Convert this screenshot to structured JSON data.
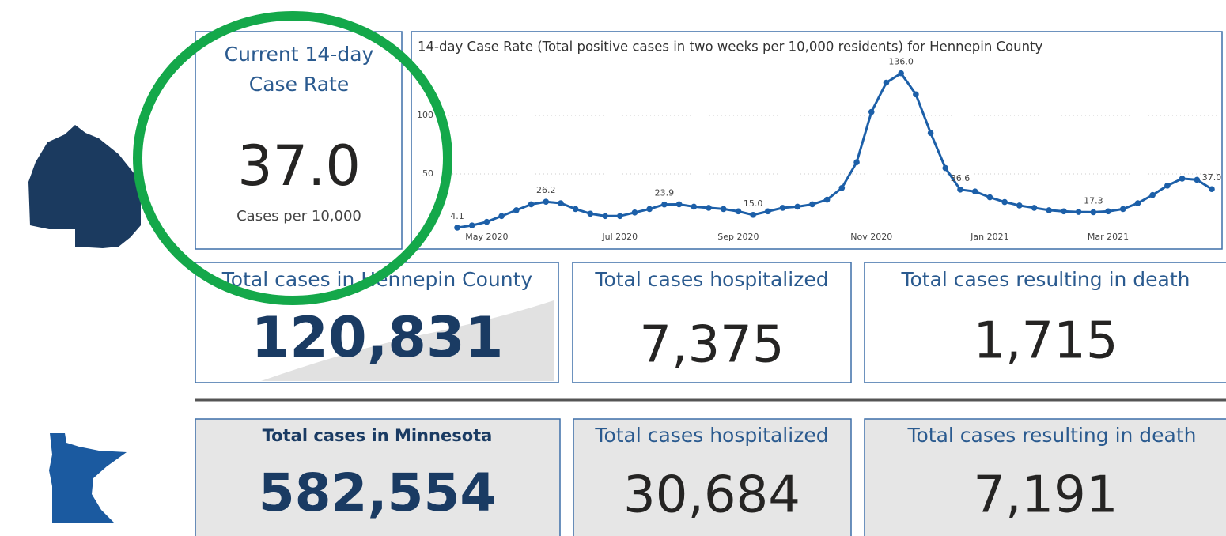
{
  "rate_card": {
    "title_lines": [
      "Current 14-day",
      "Case Rate"
    ],
    "value": "37.0",
    "unit": "Cases per 10,000"
  },
  "county_cards": [
    {
      "title": "Total cases in Hennepin County",
      "value": "120,831"
    },
    {
      "title": "Total cases hospitalized",
      "value": "7,375"
    },
    {
      "title": "Total cases resulting in death",
      "value": "1,715"
    }
  ],
  "state_cards": [
    {
      "title": "Total cases in Minnesota",
      "value": "582,554"
    },
    {
      "title": "Total cases hospitalized",
      "value": "30,684"
    },
    {
      "title": "Total cases resulting in death",
      "value": "7,191"
    }
  ],
  "chart_data": {
    "type": "line",
    "title": "14-day Case Rate (Total positive cases in two weeks per 10,000 residents) for Hennepin County",
    "categories": [
      null,
      null,
      "May 2020",
      null,
      null,
      null,
      null,
      null,
      null,
      null,
      null,
      "Jul 2020",
      null,
      null,
      null,
      null,
      null,
      null,
      null,
      "Sep 2020",
      null,
      null,
      null,
      null,
      null,
      null,
      null,
      null,
      "Nov 2020",
      null,
      null,
      null,
      null,
      null,
      null,
      null,
      "Jan 2021",
      null,
      null,
      null,
      null,
      null,
      null,
      null,
      "Mar 2021",
      null,
      null,
      null,
      null,
      null,
      null,
      null
    ],
    "values": [
      4.1,
      6,
      9,
      14,
      19,
      24,
      26.2,
      25,
      20,
      16,
      14,
      14,
      17,
      20,
      23.9,
      24,
      22,
      21,
      20,
      18,
      15.0,
      18,
      21,
      22,
      24,
      28,
      38,
      60,
      103,
      128,
      136.0,
      118,
      85,
      55,
      36.6,
      35,
      30,
      26,
      23,
      21,
      19,
      18,
      17.5,
      17.3,
      18,
      20,
      25,
      32,
      40,
      46,
      45,
      37.0
    ],
    "value_labels": [
      "4.1",
      null,
      null,
      null,
      null,
      null,
      "26.2",
      null,
      null,
      null,
      null,
      null,
      null,
      null,
      "23.9",
      null,
      null,
      null,
      null,
      null,
      "15.0",
      null,
      null,
      null,
      null,
      null,
      null,
      null,
      null,
      null,
      "136.0",
      null,
      null,
      null,
      "36.6",
      null,
      null,
      null,
      null,
      null,
      null,
      null,
      null,
      "17.3",
      null,
      null,
      null,
      null,
      null,
      null,
      null,
      "37.0"
    ],
    "color": "#1c5fa8",
    "ylim": [
      0,
      145
    ],
    "yticks": [
      50,
      100
    ],
    "grid": true
  }
}
